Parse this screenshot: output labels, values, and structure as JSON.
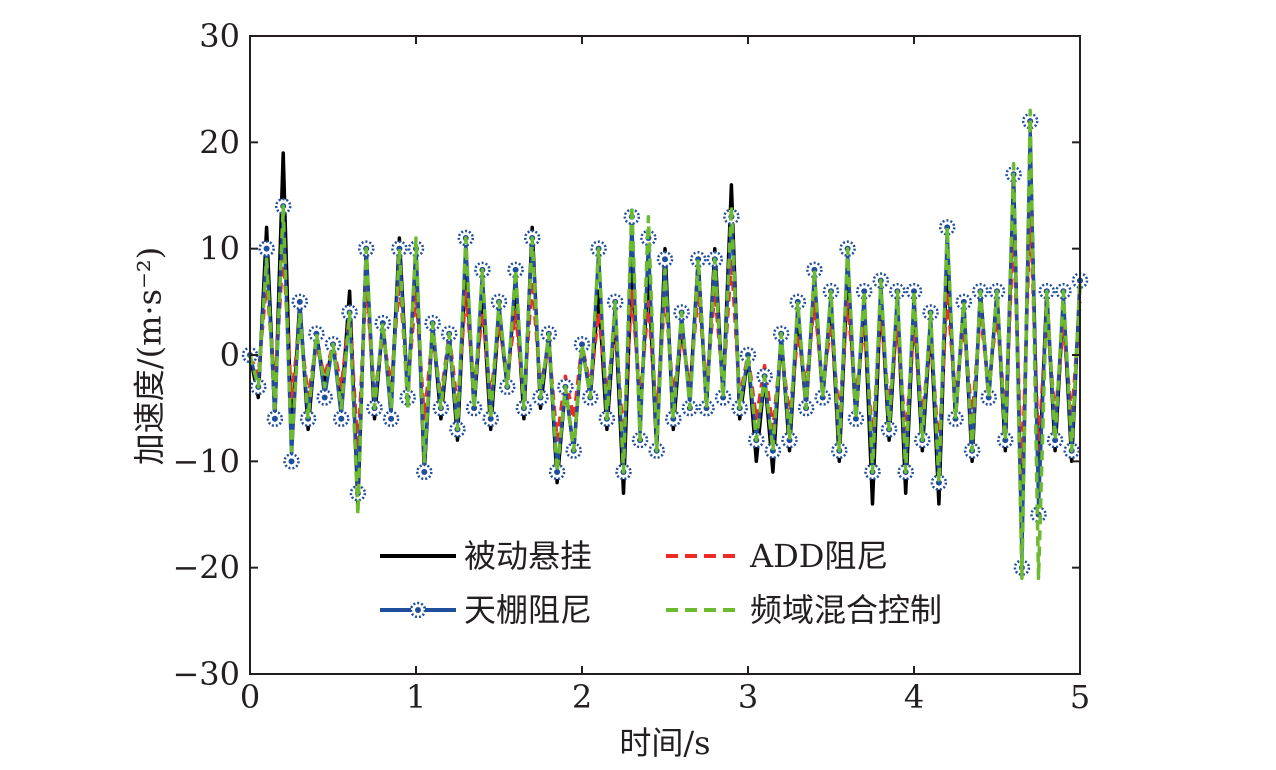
{
  "chart_data": {
    "type": "line",
    "xlabel": "时间/s",
    "ylabel": "加速度/(m·s⁻²)",
    "xlim": [
      0,
      5
    ],
    "ylim": [
      -30,
      30
    ],
    "x_ticks": [
      "0",
      "1",
      "2",
      "3",
      "4",
      "5"
    ],
    "y_ticks": [
      "30",
      "20",
      "10",
      "0",
      "−10",
      "−20",
      "−30"
    ],
    "grid": false,
    "legend_position": "bottom-center",
    "x": [
      0,
      0.05,
      0.1,
      0.15,
      0.2,
      0.25,
      0.3,
      0.35,
      0.4,
      0.45,
      0.5,
      0.55,
      0.6,
      0.65,
      0.7,
      0.75,
      0.8,
      0.85,
      0.9,
      0.95,
      1.0,
      1.05,
      1.1,
      1.15,
      1.2,
      1.25,
      1.3,
      1.35,
      1.4,
      1.45,
      1.5,
      1.55,
      1.6,
      1.65,
      1.7,
      1.75,
      1.8,
      1.85,
      1.9,
      1.95,
      2.0,
      2.05,
      2.1,
      2.15,
      2.2,
      2.25,
      2.3,
      2.35,
      2.4,
      2.45,
      2.5,
      2.55,
      2.6,
      2.65,
      2.7,
      2.75,
      2.8,
      2.85,
      2.9,
      2.95,
      3.0,
      3.05,
      3.1,
      3.15,
      3.2,
      3.25,
      3.3,
      3.35,
      3.4,
      3.45,
      3.5,
      3.55,
      3.6,
      3.65,
      3.7,
      3.75,
      3.8,
      3.85,
      3.9,
      3.95,
      4.0,
      4.05,
      4.1,
      4.15,
      4.2,
      4.25,
      4.3,
      4.35,
      4.4,
      4.45,
      4.5,
      4.55,
      4.6,
      4.65,
      4.7,
      4.75,
      4.8,
      4.85,
      4.9,
      4.95,
      5.0
    ],
    "series": [
      {
        "name": "被动悬挂",
        "color": "#000000",
        "style": "solid",
        "values": [
          0,
          -4,
          12,
          -6,
          19,
          -8,
          5,
          -7,
          2,
          -3,
          1,
          -5,
          6,
          -14,
          10,
          -6,
          3,
          -5,
          11,
          -4,
          10,
          -11,
          3,
          -6,
          2,
          -8,
          9,
          -5,
          6,
          -7,
          4,
          -3,
          7,
          -6,
          12,
          -5,
          2,
          -12,
          -3,
          -9,
          1,
          -4,
          6,
          -7,
          4,
          -13,
          9,
          -6,
          8,
          -9,
          10,
          -7,
          3,
          -4,
          9,
          -5,
          10,
          -4,
          16,
          -6,
          0,
          -10,
          -2,
          -11,
          2,
          -9,
          4,
          -5,
          7,
          -4,
          5,
          -10,
          8,
          -6,
          5,
          -14,
          6,
          -8,
          5,
          -13,
          5,
          -9,
          3,
          -14,
          10,
          -6,
          5,
          -10,
          6,
          -4,
          6,
          -9,
          17,
          -18,
          20,
          -13,
          6,
          -9,
          5,
          -10,
          7
        ]
      },
      {
        "name": "ADD阻尼",
        "color": "#ee2a24",
        "style": "dashed",
        "values": [
          0,
          -2,
          7,
          -3,
          10,
          -4,
          3,
          -4,
          1,
          -2,
          1,
          -3,
          4,
          -9,
          7,
          -4,
          2,
          -3,
          7,
          -3,
          6,
          -6,
          2,
          -4,
          2,
          -5,
          6,
          -3,
          4,
          -4,
          3,
          -2,
          4,
          -4,
          7,
          -3,
          1,
          -8,
          -2,
          -6,
          1,
          -3,
          4,
          -4,
          3,
          -8,
          6,
          -4,
          5,
          -6,
          6,
          -4,
          2,
          -3,
          6,
          -3,
          6,
          -3,
          9,
          -4,
          0,
          -6,
          -1,
          -7,
          1,
          -6,
          2,
          -3,
          5,
          -3,
          3,
          -6,
          5,
          -4,
          3,
          -8,
          4,
          -5,
          3,
          -8,
          3,
          -6,
          2,
          -9,
          6,
          -4,
          3,
          -6,
          4,
          -3,
          4,
          -6,
          12,
          -12,
          14,
          -9,
          4,
          -6,
          3,
          -6,
          5
        ]
      },
      {
        "name": "天棚阻尼",
        "color": "#1f4e9c",
        "style": "solid-star",
        "values": [
          0,
          -3,
          10,
          -6,
          14,
          -10,
          5,
          -6,
          2,
          -4,
          1,
          -6,
          4,
          -13,
          10,
          -5,
          3,
          -6,
          10,
          -4,
          10,
          -11,
          3,
          -5,
          2,
          -7,
          11,
          -5,
          8,
          -6,
          5,
          -3,
          8,
          -5,
          11,
          -4,
          2,
          -11,
          -3,
          -9,
          1,
          -4,
          10,
          -6,
          5,
          -11,
          13,
          -8,
          11,
          -9,
          9,
          -6,
          4,
          -5,
          9,
          -5,
          9,
          -4,
          13,
          -5,
          0,
          -8,
          -2,
          -9,
          2,
          -8,
          5,
          -5,
          8,
          -4,
          6,
          -9,
          10,
          -6,
          6,
          -11,
          7,
          -7,
          6,
          -11,
          6,
          -8,
          4,
          -12,
          12,
          -6,
          5,
          -9,
          6,
          -4,
          6,
          -8,
          17,
          -20,
          22,
          -15,
          6,
          -8,
          6,
          -9,
          7
        ]
      },
      {
        "name": "频域混合控制",
        "color": "#6cba32",
        "style": "dashed",
        "values": [
          0,
          -3,
          9,
          -5,
          14,
          -9,
          4,
          -6,
          2,
          -3,
          1,
          -5,
          4,
          -15,
          10,
          -5,
          3,
          -5,
          10,
          -5,
          11,
          -10,
          3,
          -5,
          2,
          -7,
          11,
          -5,
          8,
          -6,
          5,
          -3,
          8,
          -5,
          11,
          -4,
          2,
          -11,
          -3,
          -9,
          1,
          -4,
          10,
          -6,
          5,
          -11,
          14,
          -8,
          13,
          -9,
          8,
          -6,
          4,
          -5,
          9,
          -5,
          9,
          -4,
          14,
          -5,
          0,
          -8,
          -2,
          -9,
          2,
          -8,
          5,
          -5,
          8,
          -4,
          6,
          -9,
          10,
          -6,
          6,
          -11,
          7,
          -7,
          6,
          -11,
          6,
          -8,
          4,
          -12,
          12,
          -6,
          5,
          -9,
          6,
          -4,
          6,
          -8,
          18,
          -21,
          23,
          -21,
          6,
          -8,
          6,
          -9,
          7
        ]
      }
    ]
  }
}
